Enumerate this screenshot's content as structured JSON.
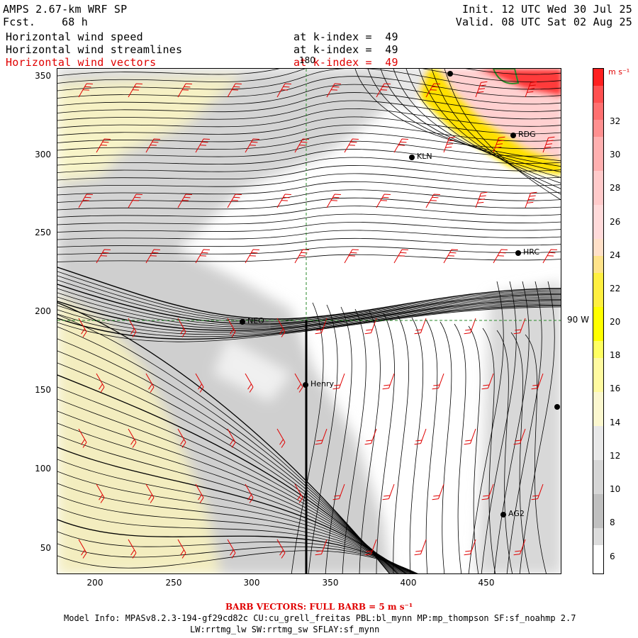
{
  "header": {
    "model_title": "AMPS 2.67-km WRF SP",
    "forecast": "Fcst.    68 h",
    "init": "Init. 12 UTC Wed 30 Jul 25",
    "valid": "Valid. 08 UTC Sat 02 Aug 25",
    "fields": [
      {
        "name": "Horizontal wind speed",
        "level": "at k-index =  49"
      },
      {
        "name": "Horizontal wind streamlines",
        "level": "at k-index =  49"
      },
      {
        "name": "Horizontal wind vectors",
        "level": "at k-index =  49",
        "color": "#e00000"
      }
    ]
  },
  "map": {
    "x_ticks": [
      "200",
      "250",
      "300",
      "350",
      "400",
      "450"
    ],
    "y_ticks": [
      "350",
      "300",
      "250",
      "200",
      "150",
      "100",
      "50"
    ],
    "meridian_label": "180",
    "parallel_label": "90 W",
    "stations": [
      {
        "id": "KLN",
        "label": "KLN"
      },
      {
        "id": "RDG",
        "label": "RDG"
      },
      {
        "id": "HRC",
        "label": "HRC"
      },
      {
        "id": "NEO",
        "label": "NEO"
      },
      {
        "id": "Henry",
        "label": "Henry"
      },
      {
        "id": "AG2",
        "label": "AG2"
      },
      {
        "id": "top",
        "label": ""
      },
      {
        "id": "right",
        "label": ""
      }
    ]
  },
  "colorbar": {
    "unit": "m s⁻¹",
    "ticks": [
      "32",
      "30",
      "28",
      "26",
      "24",
      "22",
      "20",
      "18",
      "16",
      "14",
      "12",
      "10",
      "8",
      "6"
    ],
    "colors": {
      "lightgray": "#d6d6d6",
      "gray": "#b8b8b8",
      "paleyellow": "#fbf7cf",
      "yellow": "#ffff00",
      "pink": "#ffcaca",
      "red": "#ff2a2a"
    }
  },
  "footer": {
    "barb_note": "BARB VECTORS:  FULL BARB = 5 m s⁻¹",
    "model_info_1": "Model Info: MPASv8.2.3-194-gf29cd82c CU:cu_grell_freitas PBL:bl_mynn MP:mp_thompson SF:sf_noahmp 2.7",
    "model_info_2": "LW:rrtmg_lw SW:rrtmg_sw SFLAY:sf_mynn"
  }
}
